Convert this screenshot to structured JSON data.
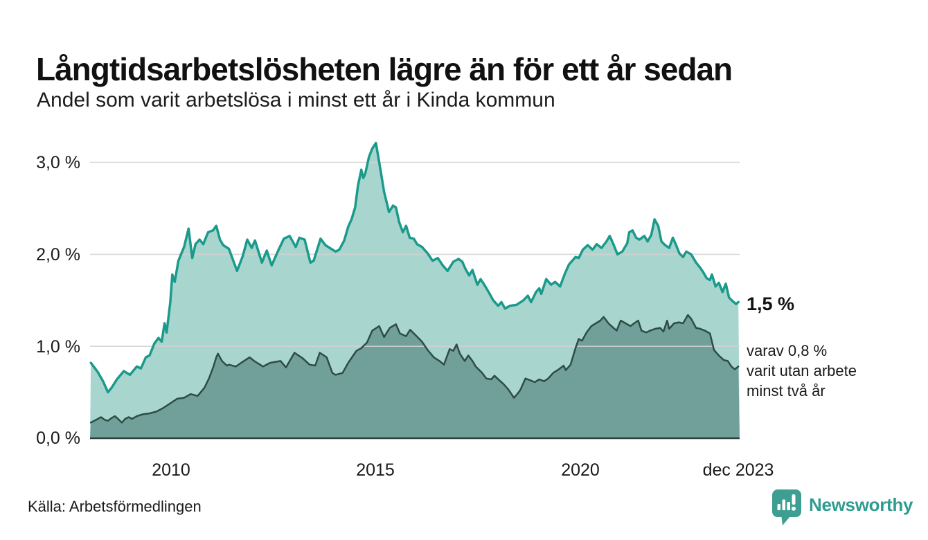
{
  "header": {
    "title": "Långtidsarbetslösheten lägre än för ett år sedan",
    "subtitle": "Andel som varit arbetslösa i minst ett år i Kinda kommun"
  },
  "annotations": {
    "latest_total": "1,5 %",
    "sub_note_lines": [
      "varav 0,8 %",
      "varit utan arbete",
      "minst två år"
    ]
  },
  "footer": {
    "source": "Källa: Arbetsförmedlingen",
    "brand_name": "Newsworthy"
  },
  "colors": {
    "line_total": "#1b9a8b",
    "fill_total": "#a8d6cf",
    "line_two_years": "#2e4b47",
    "fill_two_years": "#71a09a",
    "gridline": "#d2d2d2",
    "baseline": "#2c3e3c",
    "brand_teal": "#2f9c90",
    "text": "#1a1a1a"
  },
  "chart_data": {
    "type": "area",
    "title": "Långtidsarbetslösheten lägre än för ett år sedan",
    "subtitle": "Andel som varit arbetslösa i minst ett år i Kinda kommun",
    "unit": "%",
    "xlim": [
      2008.0,
      2023.95
    ],
    "ylim": [
      0,
      3.26
    ],
    "grid": "horizontal",
    "x_tick_labels": [
      "2010",
      "2015",
      "2020",
      "dec 2023"
    ],
    "x_tick_values": [
      2010,
      2015,
      2020,
      2023.92
    ],
    "y_tick_labels": [
      "0,0 %",
      "1,0 %",
      "2,0 %",
      "3,0 %"
    ],
    "y_tick_values": [
      0,
      1,
      2,
      3
    ],
    "series": [
      {
        "name": "Andel som varit arbetslösa i minst ett år",
        "end_value_label": "1,5 %",
        "stroke": "#1b9a8b",
        "fill": "#a8d6cf",
        "stroke_width": 3.5,
        "points": [
          [
            2008.02,
            0.82
          ],
          [
            2008.19,
            0.72
          ],
          [
            2008.32,
            0.62
          ],
          [
            2008.44,
            0.5
          ],
          [
            2008.53,
            0.55
          ],
          [
            2008.66,
            0.64
          ],
          [
            2008.83,
            0.73
          ],
          [
            2008.98,
            0.69
          ],
          [
            2009.15,
            0.78
          ],
          [
            2009.25,
            0.76
          ],
          [
            2009.37,
            0.88
          ],
          [
            2009.46,
            0.9
          ],
          [
            2009.58,
            1.03
          ],
          [
            2009.68,
            1.09
          ],
          [
            2009.76,
            1.05
          ],
          [
            2009.83,
            1.25
          ],
          [
            2009.88,
            1.15
          ],
          [
            2009.97,
            1.48
          ],
          [
            2010.02,
            1.78
          ],
          [
            2010.08,
            1.7
          ],
          [
            2010.17,
            1.93
          ],
          [
            2010.31,
            2.08
          ],
          [
            2010.42,
            2.28
          ],
          [
            2010.51,
            1.96
          ],
          [
            2010.59,
            2.11
          ],
          [
            2010.69,
            2.16
          ],
          [
            2010.78,
            2.11
          ],
          [
            2010.9,
            2.24
          ],
          [
            2011.02,
            2.26
          ],
          [
            2011.1,
            2.31
          ],
          [
            2011.19,
            2.16
          ],
          [
            2011.27,
            2.1
          ],
          [
            2011.41,
            2.06
          ],
          [
            2011.61,
            1.82
          ],
          [
            2011.75,
            1.98
          ],
          [
            2011.86,
            2.16
          ],
          [
            2011.97,
            2.07
          ],
          [
            2012.05,
            2.15
          ],
          [
            2012.22,
            1.91
          ],
          [
            2012.34,
            2.04
          ],
          [
            2012.46,
            1.88
          ],
          [
            2012.63,
            2.05
          ],
          [
            2012.76,
            2.17
          ],
          [
            2012.9,
            2.2
          ],
          [
            2013.05,
            2.08
          ],
          [
            2013.14,
            2.18
          ],
          [
            2013.27,
            2.16
          ],
          [
            2013.41,
            1.91
          ],
          [
            2013.49,
            1.93
          ],
          [
            2013.66,
            2.17
          ],
          [
            2013.78,
            2.1
          ],
          [
            2013.92,
            2.06
          ],
          [
            2014.03,
            2.03
          ],
          [
            2014.12,
            2.05
          ],
          [
            2014.24,
            2.15
          ],
          [
            2014.34,
            2.3
          ],
          [
            2014.42,
            2.38
          ],
          [
            2014.51,
            2.51
          ],
          [
            2014.58,
            2.75
          ],
          [
            2014.66,
            2.92
          ],
          [
            2014.71,
            2.83
          ],
          [
            2014.76,
            2.88
          ],
          [
            2014.85,
            3.06
          ],
          [
            2014.93,
            3.15
          ],
          [
            2015.02,
            3.21
          ],
          [
            2015.12,
            2.95
          ],
          [
            2015.22,
            2.68
          ],
          [
            2015.34,
            2.46
          ],
          [
            2015.44,
            2.53
          ],
          [
            2015.51,
            2.51
          ],
          [
            2015.59,
            2.35
          ],
          [
            2015.68,
            2.24
          ],
          [
            2015.76,
            2.31
          ],
          [
            2015.85,
            2.18
          ],
          [
            2015.95,
            2.17
          ],
          [
            2016.03,
            2.11
          ],
          [
            2016.15,
            2.08
          ],
          [
            2016.29,
            2.01
          ],
          [
            2016.41,
            1.93
          ],
          [
            2016.54,
            1.96
          ],
          [
            2016.66,
            1.88
          ],
          [
            2016.78,
            1.82
          ],
          [
            2016.92,
            1.92
          ],
          [
            2017.05,
            1.95
          ],
          [
            2017.14,
            1.92
          ],
          [
            2017.22,
            1.84
          ],
          [
            2017.31,
            1.77
          ],
          [
            2017.39,
            1.83
          ],
          [
            2017.51,
            1.67
          ],
          [
            2017.59,
            1.73
          ],
          [
            2017.68,
            1.67
          ],
          [
            2017.8,
            1.58
          ],
          [
            2017.9,
            1.5
          ],
          [
            2018.02,
            1.44
          ],
          [
            2018.1,
            1.48
          ],
          [
            2018.19,
            1.41
          ],
          [
            2018.31,
            1.44
          ],
          [
            2018.47,
            1.45
          ],
          [
            2018.64,
            1.5
          ],
          [
            2018.75,
            1.55
          ],
          [
            2018.83,
            1.48
          ],
          [
            2018.95,
            1.59
          ],
          [
            2019.03,
            1.63
          ],
          [
            2019.08,
            1.57
          ],
          [
            2019.2,
            1.73
          ],
          [
            2019.32,
            1.67
          ],
          [
            2019.42,
            1.7
          ],
          [
            2019.54,
            1.65
          ],
          [
            2019.66,
            1.79
          ],
          [
            2019.76,
            1.89
          ],
          [
            2019.92,
            1.97
          ],
          [
            2020.0,
            1.96
          ],
          [
            2020.1,
            2.05
          ],
          [
            2020.22,
            2.1
          ],
          [
            2020.34,
            2.05
          ],
          [
            2020.44,
            2.11
          ],
          [
            2020.56,
            2.07
          ],
          [
            2020.68,
            2.14
          ],
          [
            2020.76,
            2.2
          ],
          [
            2020.85,
            2.11
          ],
          [
            2020.95,
            2.0
          ],
          [
            2021.07,
            2.03
          ],
          [
            2021.19,
            2.12
          ],
          [
            2021.24,
            2.24
          ],
          [
            2021.32,
            2.26
          ],
          [
            2021.41,
            2.18
          ],
          [
            2021.49,
            2.16
          ],
          [
            2021.61,
            2.2
          ],
          [
            2021.69,
            2.14
          ],
          [
            2021.78,
            2.21
          ],
          [
            2021.86,
            2.38
          ],
          [
            2021.95,
            2.31
          ],
          [
            2022.03,
            2.14
          ],
          [
            2022.12,
            2.1
          ],
          [
            2022.22,
            2.07
          ],
          [
            2022.31,
            2.18
          ],
          [
            2022.39,
            2.1
          ],
          [
            2022.47,
            2.01
          ],
          [
            2022.56,
            1.97
          ],
          [
            2022.64,
            2.03
          ],
          [
            2022.76,
            2.0
          ],
          [
            2022.88,
            1.91
          ],
          [
            2022.97,
            1.86
          ],
          [
            2023.05,
            1.81
          ],
          [
            2023.14,
            1.74
          ],
          [
            2023.22,
            1.72
          ],
          [
            2023.27,
            1.78
          ],
          [
            2023.36,
            1.65
          ],
          [
            2023.44,
            1.69
          ],
          [
            2023.53,
            1.59
          ],
          [
            2023.61,
            1.68
          ],
          [
            2023.69,
            1.53
          ],
          [
            2023.78,
            1.49
          ],
          [
            2023.86,
            1.46
          ],
          [
            2023.92,
            1.48
          ]
        ]
      },
      {
        "name": "varav varit utan arbete minst två år",
        "end_value_label": "0,8 %",
        "stroke": "#2e4b47",
        "fill": "#71a09a",
        "stroke_width": 2.5,
        "points": [
          [
            2008.02,
            0.17
          ],
          [
            2008.15,
            0.2
          ],
          [
            2008.27,
            0.23
          ],
          [
            2008.36,
            0.2
          ],
          [
            2008.44,
            0.19
          ],
          [
            2008.53,
            0.22
          ],
          [
            2008.61,
            0.24
          ],
          [
            2008.69,
            0.21
          ],
          [
            2008.78,
            0.17
          ],
          [
            2008.86,
            0.21
          ],
          [
            2008.95,
            0.23
          ],
          [
            2009.03,
            0.21
          ],
          [
            2009.15,
            0.24
          ],
          [
            2009.29,
            0.26
          ],
          [
            2009.46,
            0.27
          ],
          [
            2009.63,
            0.29
          ],
          [
            2009.8,
            0.33
          ],
          [
            2009.97,
            0.38
          ],
          [
            2010.14,
            0.43
          ],
          [
            2010.31,
            0.44
          ],
          [
            2010.47,
            0.48
          ],
          [
            2010.64,
            0.46
          ],
          [
            2010.81,
            0.55
          ],
          [
            2010.92,
            0.65
          ],
          [
            2011.03,
            0.78
          ],
          [
            2011.1,
            0.88
          ],
          [
            2011.14,
            0.92
          ],
          [
            2011.24,
            0.84
          ],
          [
            2011.36,
            0.79
          ],
          [
            2011.41,
            0.8
          ],
          [
            2011.58,
            0.78
          ],
          [
            2011.71,
            0.82
          ],
          [
            2011.92,
            0.88
          ],
          [
            2012.03,
            0.84
          ],
          [
            2012.25,
            0.78
          ],
          [
            2012.42,
            0.82
          ],
          [
            2012.68,
            0.84
          ],
          [
            2012.81,
            0.77
          ],
          [
            2013.02,
            0.93
          ],
          [
            2013.22,
            0.87
          ],
          [
            2013.39,
            0.8
          ],
          [
            2013.53,
            0.79
          ],
          [
            2013.64,
            0.93
          ],
          [
            2013.81,
            0.88
          ],
          [
            2013.95,
            0.71
          ],
          [
            2014.03,
            0.69
          ],
          [
            2014.2,
            0.71
          ],
          [
            2014.34,
            0.82
          ],
          [
            2014.54,
            0.95
          ],
          [
            2014.66,
            0.98
          ],
          [
            2014.8,
            1.04
          ],
          [
            2014.93,
            1.17
          ],
          [
            2015.1,
            1.22
          ],
          [
            2015.22,
            1.1
          ],
          [
            2015.36,
            1.2
          ],
          [
            2015.51,
            1.24
          ],
          [
            2015.61,
            1.14
          ],
          [
            2015.76,
            1.11
          ],
          [
            2015.86,
            1.18
          ],
          [
            2016.02,
            1.11
          ],
          [
            2016.15,
            1.05
          ],
          [
            2016.29,
            0.96
          ],
          [
            2016.44,
            0.88
          ],
          [
            2016.58,
            0.84
          ],
          [
            2016.69,
            0.8
          ],
          [
            2016.83,
            0.97
          ],
          [
            2016.92,
            0.95
          ],
          [
            2017.0,
            1.02
          ],
          [
            2017.08,
            0.92
          ],
          [
            2017.2,
            0.84
          ],
          [
            2017.29,
            0.9
          ],
          [
            2017.39,
            0.84
          ],
          [
            2017.47,
            0.78
          ],
          [
            2017.63,
            0.71
          ],
          [
            2017.73,
            0.65
          ],
          [
            2017.85,
            0.64
          ],
          [
            2017.93,
            0.68
          ],
          [
            2018.05,
            0.63
          ],
          [
            2018.15,
            0.59
          ],
          [
            2018.27,
            0.53
          ],
          [
            2018.41,
            0.44
          ],
          [
            2018.49,
            0.48
          ],
          [
            2018.56,
            0.52
          ],
          [
            2018.69,
            0.65
          ],
          [
            2018.81,
            0.63
          ],
          [
            2018.92,
            0.61
          ],
          [
            2019.03,
            0.64
          ],
          [
            2019.15,
            0.62
          ],
          [
            2019.25,
            0.65
          ],
          [
            2019.37,
            0.71
          ],
          [
            2019.51,
            0.75
          ],
          [
            2019.63,
            0.79
          ],
          [
            2019.68,
            0.74
          ],
          [
            2019.8,
            0.8
          ],
          [
            2019.92,
            0.98
          ],
          [
            2020.0,
            1.08
          ],
          [
            2020.08,
            1.06
          ],
          [
            2020.19,
            1.15
          ],
          [
            2020.31,
            1.22
          ],
          [
            2020.42,
            1.25
          ],
          [
            2020.53,
            1.28
          ],
          [
            2020.61,
            1.32
          ],
          [
            2020.73,
            1.25
          ],
          [
            2020.85,
            1.2
          ],
          [
            2020.93,
            1.17
          ],
          [
            2021.03,
            1.28
          ],
          [
            2021.15,
            1.25
          ],
          [
            2021.27,
            1.22
          ],
          [
            2021.36,
            1.25
          ],
          [
            2021.46,
            1.28
          ],
          [
            2021.54,
            1.17
          ],
          [
            2021.66,
            1.15
          ],
          [
            2021.75,
            1.17
          ],
          [
            2021.88,
            1.19
          ],
          [
            2022.0,
            1.2
          ],
          [
            2022.08,
            1.16
          ],
          [
            2022.17,
            1.28
          ],
          [
            2022.22,
            1.19
          ],
          [
            2022.34,
            1.25
          ],
          [
            2022.46,
            1.26
          ],
          [
            2022.56,
            1.25
          ],
          [
            2022.68,
            1.34
          ],
          [
            2022.76,
            1.3
          ],
          [
            2022.88,
            1.2
          ],
          [
            2022.98,
            1.19
          ],
          [
            2023.1,
            1.17
          ],
          [
            2023.22,
            1.14
          ],
          [
            2023.32,
            0.96
          ],
          [
            2023.44,
            0.9
          ],
          [
            2023.56,
            0.85
          ],
          [
            2023.66,
            0.84
          ],
          [
            2023.75,
            0.78
          ],
          [
            2023.83,
            0.75
          ],
          [
            2023.92,
            0.78
          ]
        ]
      }
    ]
  }
}
